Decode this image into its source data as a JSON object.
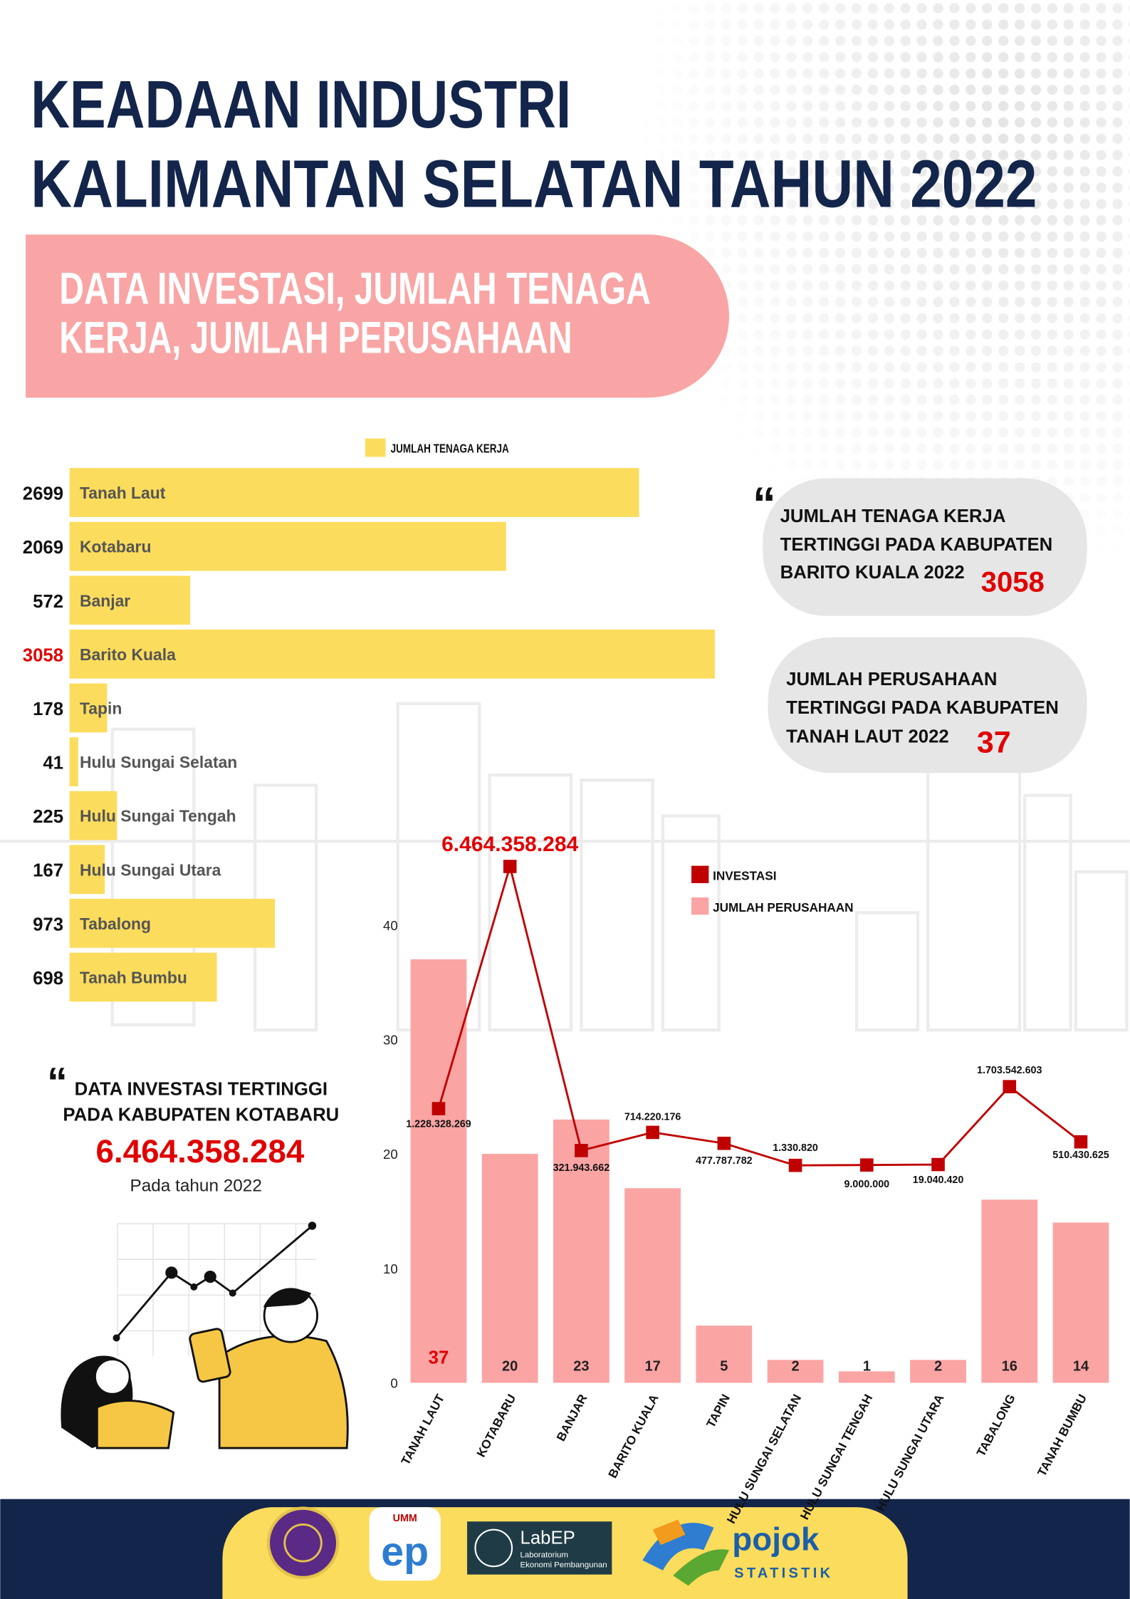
{
  "header": {
    "title": [
      "KEADAAN INDUSTRI",
      "KALIMANTAN SELATAN TAHUN 2022"
    ],
    "subtitle": [
      "DATA INVESTASI, JUMLAH TENAGA",
      "KERJA, JUMLAH PERUSAHAAN"
    ]
  },
  "chart_data": [
    {
      "type": "hbar",
      "categories": [
        "Tanah Laut",
        "Kotabaru",
        "Banjar",
        "Barito Kuala",
        "Tapin",
        "Hulu Sungai Selatan",
        "Hulu Sungai Tengah",
        "Hulu Sungai Utara",
        "Tabalong",
        "Tanah Bumbu"
      ],
      "series": [
        {
          "name": "JUMLAH TENAGA KERJA",
          "color": "#fcdc5c",
          "values": [
            2699,
            2069,
            572,
            3058,
            178,
            41,
            225,
            167,
            973,
            698
          ],
          "label_colors": [
            "#111111",
            "#111111",
            "#111111",
            "#e00000",
            "#111111",
            "#111111",
            "#111111",
            "#111111",
            "#111111",
            "#111111"
          ]
        }
      ]
    },
    {
      "type": "combo",
      "categories": [
        "TANAH LAUT",
        "KOTABARU",
        "BANJAR",
        "BARITO KUALA",
        "TAPIN",
        "HULU SUNGAI SELATAN",
        "HULU SUNGAI TENGAH",
        "HULU SUNGAI UTARA",
        "TABALONG",
        "TANAH BUMBU"
      ],
      "ylim": [
        0,
        40
      ],
      "yticks": [
        0,
        10,
        20,
        30,
        40
      ],
      "y2lim": [
        -4700000000,
        5200000000
      ],
      "series": [
        {
          "name": "INVESTASI",
          "type": "line",
          "axis": "y2",
          "color": "#c00000",
          "values": [
            1228328269,
            6464358284,
            321943662,
            714220176,
            477787782,
            1330820,
            9000000,
            19040420,
            1703542603,
            510430625
          ],
          "value_labels": [
            "1.228.328.269",
            "6.464.358.284",
            "321.943.662",
            "714.220.176",
            "477.787.782",
            "1.330.820",
            "9.000.000",
            "19.040.420",
            "1.703.542.603",
            "510.430.625"
          ],
          "label_colors": [
            "#111111",
            "#e00000",
            "#111111",
            "#111111",
            "#111111",
            "#111111",
            "#111111",
            "#111111",
            "#111111",
            "#111111"
          ]
        },
        {
          "name": "JUMLAH PERUSAHAAN",
          "type": "bar",
          "color": "#fba4a4",
          "values": [
            37,
            20,
            23,
            17,
            5,
            2,
            1,
            2,
            16,
            14
          ],
          "label_colors": [
            "#e00000",
            "#222222",
            "#222222",
            "#222222",
            "#222222",
            "#222222",
            "#222222",
            "#222222",
            "#222222",
            "#222222"
          ]
        }
      ]
    }
  ],
  "callouts": [
    {
      "lines": [
        "JUMLAH TENAGA KERJA",
        "TERTINGGI PADA KABUPATEN",
        "BARITO KUALA 2022"
      ],
      "value": "3058"
    },
    {
      "lines": [
        "JUMLAH PERUSAHAAN",
        "TERTINGGI PADA KABUPATEN",
        "TANAH LAUT 2022"
      ],
      "value": "37"
    }
  ],
  "investment_note": {
    "lines": [
      "DATA INVESTASI TERTINGGI",
      "PADA KABUPATEN KOTABARU"
    ],
    "value": "6.464.358.284",
    "note": "Pada tahun 2022"
  },
  "footer": {
    "logos": [
      "UMM",
      "ep",
      "LabEP",
      "Laboratorium",
      "Ekonomi Pembangunan",
      "pojok",
      "STATISTIK"
    ]
  }
}
